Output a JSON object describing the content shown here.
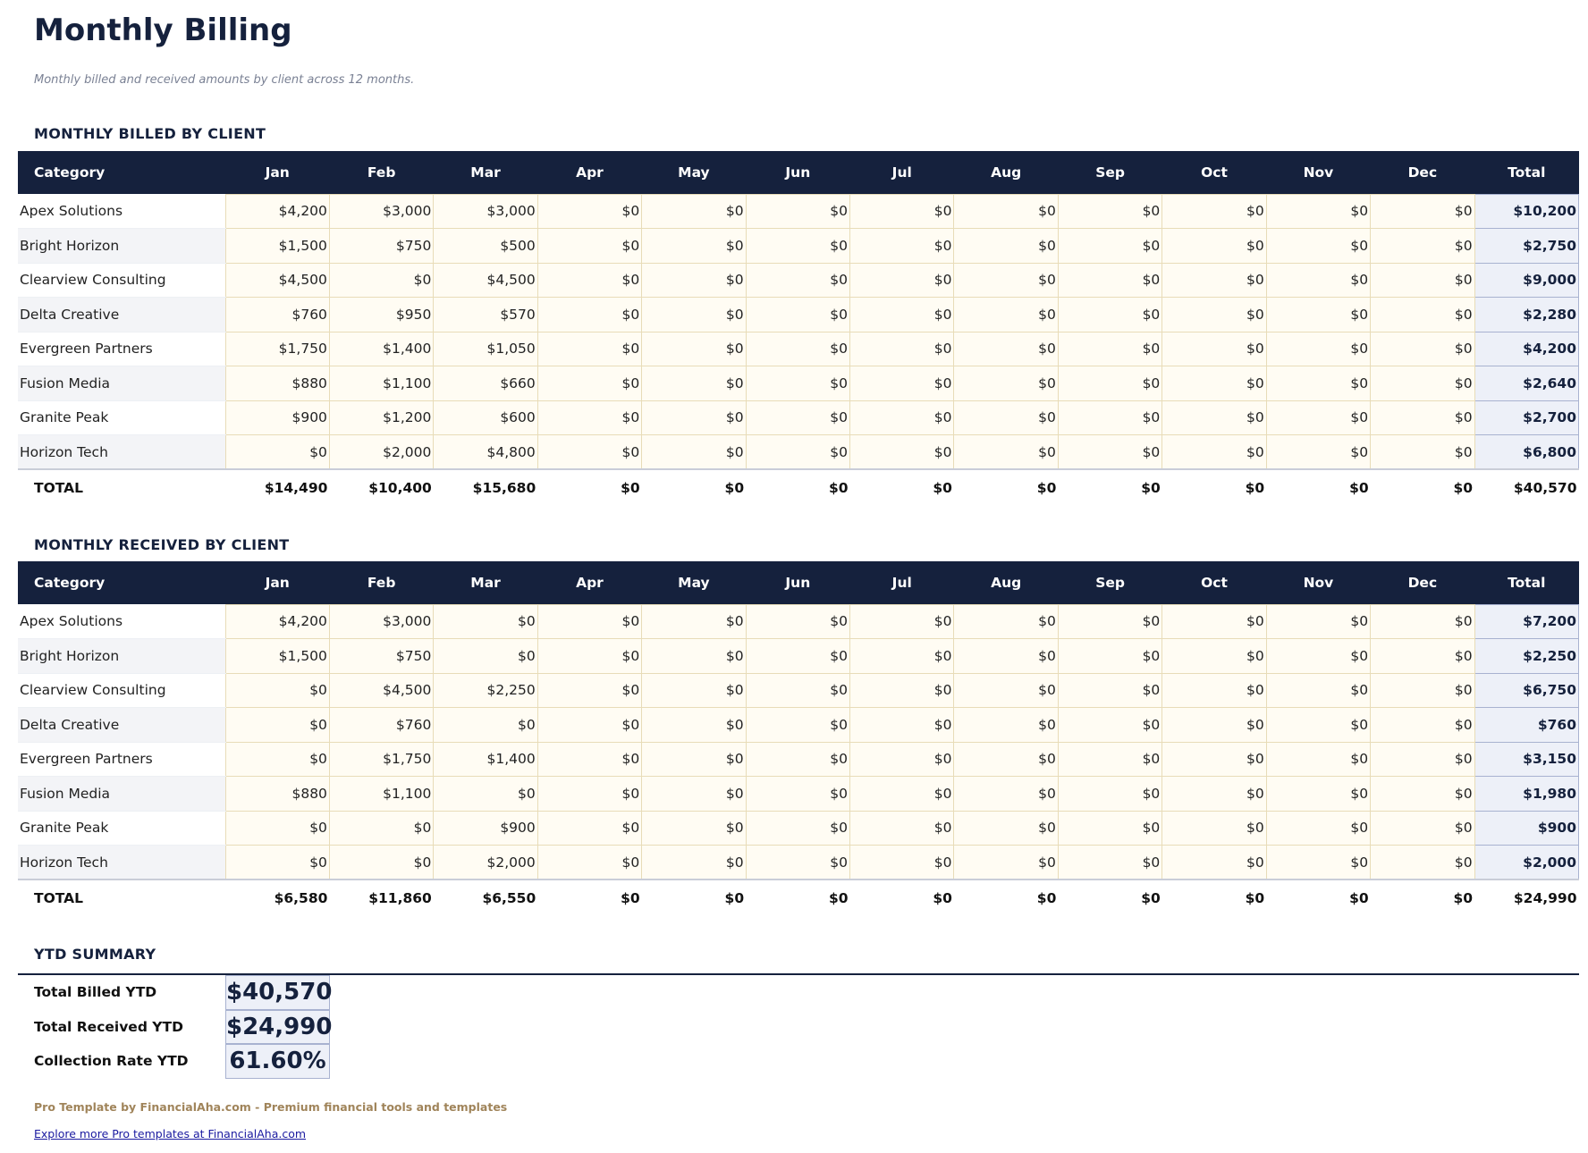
{
  "title": "Monthly Billing",
  "subtitle": "Monthly billed and received amounts by client across 12 months.",
  "columns": [
    "Category",
    "Jan",
    "Feb",
    "Mar",
    "Apr",
    "May",
    "Jun",
    "Jul",
    "Aug",
    "Sep",
    "Oct",
    "Nov",
    "Dec",
    "Total"
  ],
  "billed": {
    "heading": "MONTHLY BILLED BY CLIENT",
    "rows": [
      [
        "Apex Solutions",
        "$4,200",
        "$3,000",
        "$3,000",
        "$0",
        "$0",
        "$0",
        "$0",
        "$0",
        "$0",
        "$0",
        "$0",
        "$0",
        "$10,200"
      ],
      [
        "Bright Horizon",
        "$1,500",
        "$750",
        "$500",
        "$0",
        "$0",
        "$0",
        "$0",
        "$0",
        "$0",
        "$0",
        "$0",
        "$0",
        "$2,750"
      ],
      [
        "Clearview Consulting",
        "$4,500",
        "$0",
        "$4,500",
        "$0",
        "$0",
        "$0",
        "$0",
        "$0",
        "$0",
        "$0",
        "$0",
        "$0",
        "$9,000"
      ],
      [
        "Delta Creative",
        "$760",
        "$950",
        "$570",
        "$0",
        "$0",
        "$0",
        "$0",
        "$0",
        "$0",
        "$0",
        "$0",
        "$0",
        "$2,280"
      ],
      [
        "Evergreen Partners",
        "$1,750",
        "$1,400",
        "$1,050",
        "$0",
        "$0",
        "$0",
        "$0",
        "$0",
        "$0",
        "$0",
        "$0",
        "$0",
        "$4,200"
      ],
      [
        "Fusion Media",
        "$880",
        "$1,100",
        "$660",
        "$0",
        "$0",
        "$0",
        "$0",
        "$0",
        "$0",
        "$0",
        "$0",
        "$0",
        "$2,640"
      ],
      [
        "Granite Peak",
        "$900",
        "$1,200",
        "$600",
        "$0",
        "$0",
        "$0",
        "$0",
        "$0",
        "$0",
        "$0",
        "$0",
        "$0",
        "$2,700"
      ],
      [
        "Horizon Tech",
        "$0",
        "$2,000",
        "$4,800",
        "$0",
        "$0",
        "$0",
        "$0",
        "$0",
        "$0",
        "$0",
        "$0",
        "$0",
        "$6,800"
      ]
    ],
    "total": [
      "TOTAL",
      "$14,490",
      "$10,400",
      "$15,680",
      "$0",
      "$0",
      "$0",
      "$0",
      "$0",
      "$0",
      "$0",
      "$0",
      "$0",
      "$40,570"
    ]
  },
  "received": {
    "heading": "MONTHLY RECEIVED BY CLIENT",
    "rows": [
      [
        "Apex Solutions",
        "$4,200",
        "$3,000",
        "$0",
        "$0",
        "$0",
        "$0",
        "$0",
        "$0",
        "$0",
        "$0",
        "$0",
        "$0",
        "$7,200"
      ],
      [
        "Bright Horizon",
        "$1,500",
        "$750",
        "$0",
        "$0",
        "$0",
        "$0",
        "$0",
        "$0",
        "$0",
        "$0",
        "$0",
        "$0",
        "$2,250"
      ],
      [
        "Clearview Consulting",
        "$0",
        "$4,500",
        "$2,250",
        "$0",
        "$0",
        "$0",
        "$0",
        "$0",
        "$0",
        "$0",
        "$0",
        "$0",
        "$6,750"
      ],
      [
        "Delta Creative",
        "$0",
        "$760",
        "$0",
        "$0",
        "$0",
        "$0",
        "$0",
        "$0",
        "$0",
        "$0",
        "$0",
        "$0",
        "$760"
      ],
      [
        "Evergreen Partners",
        "$0",
        "$1,750",
        "$1,400",
        "$0",
        "$0",
        "$0",
        "$0",
        "$0",
        "$0",
        "$0",
        "$0",
        "$0",
        "$3,150"
      ],
      [
        "Fusion Media",
        "$880",
        "$1,100",
        "$0",
        "$0",
        "$0",
        "$0",
        "$0",
        "$0",
        "$0",
        "$0",
        "$0",
        "$0",
        "$1,980"
      ],
      [
        "Granite Peak",
        "$0",
        "$0",
        "$900",
        "$0",
        "$0",
        "$0",
        "$0",
        "$0",
        "$0",
        "$0",
        "$0",
        "$0",
        "$900"
      ],
      [
        "Horizon Tech",
        "$0",
        "$0",
        "$2,000",
        "$0",
        "$0",
        "$0",
        "$0",
        "$0",
        "$0",
        "$0",
        "$0",
        "$0",
        "$2,000"
      ]
    ],
    "total": [
      "TOTAL",
      "$6,580",
      "$11,860",
      "$6,550",
      "$0",
      "$0",
      "$0",
      "$0",
      "$0",
      "$0",
      "$0",
      "$0",
      "$0",
      "$24,990"
    ]
  },
  "ytd": {
    "heading": "YTD SUMMARY",
    "items": [
      {
        "label": "Total Billed YTD",
        "value": "$40,570"
      },
      {
        "label": "Total Received YTD",
        "value": "$24,990"
      },
      {
        "label": "Collection Rate YTD",
        "value": "61.60%"
      }
    ]
  },
  "footer": {
    "credit": "Pro Template by FinancialAha.com - Premium financial tools and templates",
    "link": "Explore more Pro templates at FinancialAha.com"
  },
  "colors": {
    "header": "#15213d",
    "cell": "#fffcf3",
    "total_cell": "#edf0f8",
    "accent": "#a0845a"
  }
}
